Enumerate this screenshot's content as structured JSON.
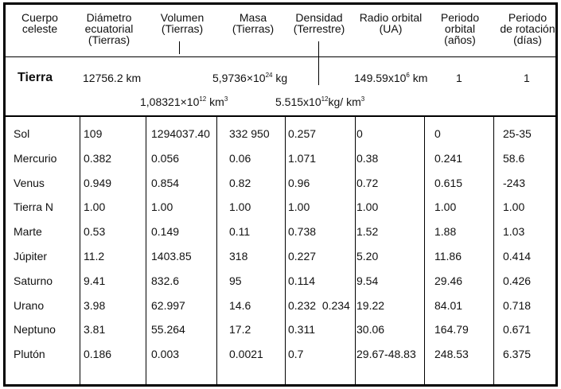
{
  "headers": [
    [
      "Cuerpo",
      "celeste"
    ],
    [
      "Diámetro",
      "ecuatorial",
      "(Tierras)"
    ],
    [
      "Volumen",
      "(Tierras)"
    ],
    [
      "Masa",
      "(Tierras)"
    ],
    [
      "Densidad",
      "(Terrestre)"
    ],
    [
      "Radio orbital",
      "(UA)"
    ],
    [
      "Periodo",
      "orbital",
      "(años)"
    ],
    [
      "Periodo",
      "de rotación",
      "(días)"
    ]
  ],
  "earth": {
    "name": "Tierra",
    "diameter": "12756.2 km",
    "mass_base": "5,9736×10",
    "mass_exp": "24",
    "mass_unit": " kg",
    "orbit_base": "149.59x10",
    "orbit_exp": "6",
    "orbit_unit": " km",
    "period": "1",
    "rotation": "1",
    "volume_base": "1,08321×10",
    "volume_exp": "12",
    "volume_unit": " km",
    "volume_unit_exp": "3",
    "density_base": "5.515x10",
    "density_exp": "12",
    "density_unit": "kg/ km",
    "density_unit_exp": "3"
  },
  "rows": [
    [
      "Sol",
      "109",
      "1294037.40",
      "332 950",
      "0.257",
      "0",
      "0",
      "25-35"
    ],
    [
      "Mercurio",
      "0.382",
      "0.056",
      "0.06",
      "1.071",
      "0.38",
      "0.241",
      "58.6"
    ],
    [
      "Venus",
      "0.949",
      "0.854",
      "0.82",
      "0.96",
      "0.72",
      "0.615",
      "-243"
    ],
    [
      "Tierra N",
      "1.00",
      "1.00",
      "1.00",
      "1.00",
      "1.00",
      "1.00",
      "1.00"
    ],
    [
      "Marte",
      "0.53",
      "0.149",
      "0.11",
      "0.738",
      "1.52",
      "1.88",
      "1.03"
    ],
    [
      "Júpiter",
      "11.2",
      "1403.85",
      "318",
      "0.227",
      "5.20",
      "11.86",
      "0.414"
    ],
    [
      "Saturno",
      "9.41",
      "832.6",
      "95",
      "0.114",
      "9.54",
      "29.46",
      "0.426"
    ],
    [
      "Urano",
      "3.98",
      "62.997",
      "14.6",
      "0.232  0.234",
      "19.22",
      "84.01",
      "0.718"
    ],
    [
      "Neptuno",
      "3.81",
      "55.264",
      "17.2",
      "0.311",
      "30.06",
      "164.79",
      "0.671"
    ],
    [
      "Plutón",
      "0.186",
      "0.003",
      "0.0021",
      "0.7",
      "29.67-48.83",
      "248.53",
      "6.375"
    ]
  ]
}
